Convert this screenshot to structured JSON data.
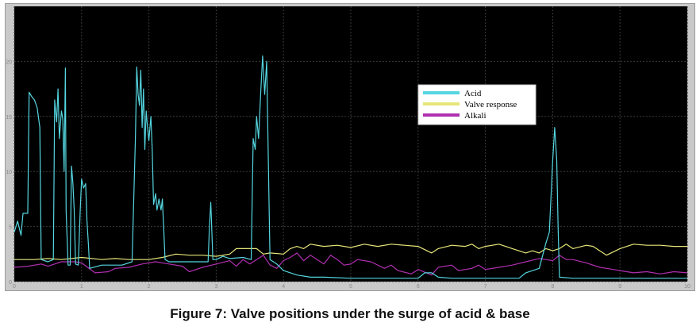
{
  "caption": "Figure 7: Valve positions under the surge of acid & base",
  "colors": {
    "background": "#000000",
    "grid": "#3a3a3a",
    "tick_text": "#8a8a8a",
    "legend_bg": "#ffffff",
    "Acid": "#55d6e0",
    "Valve response": "#e6e67a",
    "Alkali": "#b02fb0"
  },
  "chart_data": {
    "type": "line",
    "title": "",
    "xlabel": "",
    "ylabel": "",
    "xlim": [
      0,
      10
    ],
    "ylim": [
      0,
      25
    ],
    "grid": true,
    "legend_position": "upper-center-right",
    "x_ticks": [
      "0",
      "1",
      "2",
      "3",
      "4",
      "5",
      "6",
      "7",
      "8",
      "9",
      "10"
    ],
    "y_ticks": [
      "0",
      "5",
      "10",
      "15",
      "20"
    ],
    "series": [
      {
        "name": "Acid",
        "color": "#55d6e0",
        "points": [
          [
            0,
            4.5
          ],
          [
            0.05,
            5.5
          ],
          [
            0.1,
            4.2
          ],
          [
            0.13,
            6.2
          ],
          [
            0.2,
            6.2
          ],
          [
            0.22,
            17.2
          ],
          [
            0.26,
            16.8
          ],
          [
            0.3,
            16.5
          ],
          [
            0.34,
            15.8
          ],
          [
            0.38,
            14
          ],
          [
            0.4,
            2
          ],
          [
            0.5,
            1.8
          ],
          [
            0.58,
            2
          ],
          [
            0.6,
            16.5
          ],
          [
            0.63,
            14.5
          ],
          [
            0.65,
            17.5
          ],
          [
            0.67,
            13
          ],
          [
            0.7,
            15.5
          ],
          [
            0.72,
            14.8
          ],
          [
            0.74,
            10
          ],
          [
            0.76,
            19.4
          ],
          [
            0.77,
            6.5
          ],
          [
            0.8,
            1.5
          ],
          [
            0.83,
            1.5
          ],
          [
            0.85,
            10.5
          ],
          [
            0.87,
            9
          ],
          [
            0.89,
            6.5
          ],
          [
            0.91,
            1.6
          ],
          [
            0.95,
            1.5
          ],
          [
            0.98,
            6.5
          ],
          [
            1.0,
            9.3
          ],
          [
            1.03,
            8.5
          ],
          [
            1.06,
            8.9
          ],
          [
            1.08,
            5.5
          ],
          [
            1.1,
            3.5
          ],
          [
            1.12,
            1.2
          ],
          [
            1.3,
            1.5
          ],
          [
            1.5,
            1.5
          ],
          [
            1.6,
            1.5
          ],
          [
            1.75,
            1.8
          ],
          [
            1.8,
            13
          ],
          [
            1.82,
            19.5
          ],
          [
            1.84,
            17
          ],
          [
            1.86,
            16
          ],
          [
            1.88,
            19.2
          ],
          [
            1.9,
            14
          ],
          [
            1.92,
            17.5
          ],
          [
            1.94,
            12
          ],
          [
            1.96,
            15.5
          ],
          [
            1.98,
            14
          ],
          [
            2.0,
            12.8
          ],
          [
            2.03,
            15
          ],
          [
            2.05,
            12
          ],
          [
            2.07,
            7
          ],
          [
            2.1,
            8
          ],
          [
            2.12,
            6.5
          ],
          [
            2.15,
            7.5
          ],
          [
            2.18,
            6.5
          ],
          [
            2.2,
            7.5
          ],
          [
            2.24,
            2
          ],
          [
            2.3,
            1.8
          ],
          [
            2.5,
            1.8
          ],
          [
            2.7,
            1.8
          ],
          [
            2.88,
            1.8
          ],
          [
            2.9,
            5
          ],
          [
            2.92,
            7.2
          ],
          [
            2.95,
            2
          ],
          [
            3.0,
            2
          ],
          [
            3.1,
            2.3
          ],
          [
            3.2,
            2.1
          ],
          [
            3.4,
            2.2
          ],
          [
            3.52,
            2
          ],
          [
            3.55,
            13
          ],
          [
            3.58,
            12
          ],
          [
            3.6,
            15
          ],
          [
            3.63,
            13
          ],
          [
            3.66,
            17
          ],
          [
            3.69,
            20.5
          ],
          [
            3.72,
            17
          ],
          [
            3.75,
            20
          ],
          [
            3.8,
            2
          ],
          [
            3.9,
            1.6
          ],
          [
            4.0,
            1
          ],
          [
            4.2,
            0.6
          ],
          [
            4.4,
            0.4
          ],
          [
            4.6,
            0.4
          ],
          [
            5.0,
            0.3
          ],
          [
            5.5,
            0.3
          ],
          [
            6.0,
            0.3
          ],
          [
            6.1,
            0.8
          ],
          [
            6.2,
            0.8
          ],
          [
            6.3,
            0.4
          ],
          [
            6.5,
            0.3
          ],
          [
            7.0,
            0.3
          ],
          [
            7.5,
            0.3
          ],
          [
            7.6,
            0.8
          ],
          [
            7.8,
            1.2
          ],
          [
            7.9,
            3.5
          ],
          [
            7.95,
            4.5
          ],
          [
            8.0,
            11
          ],
          [
            8.03,
            14
          ],
          [
            8.06,
            11
          ],
          [
            8.08,
            5
          ],
          [
            8.1,
            0.4
          ],
          [
            8.3,
            0.3
          ],
          [
            8.6,
            0.3
          ],
          [
            9.0,
            0.3
          ],
          [
            9.5,
            0.3
          ],
          [
            10,
            0.3
          ]
        ]
      },
      {
        "name": "Valve response",
        "color": "#e6e67a",
        "points": [
          [
            0,
            2
          ],
          [
            0.3,
            2
          ],
          [
            0.5,
            2.1
          ],
          [
            0.7,
            2
          ],
          [
            1.0,
            2.2
          ],
          [
            1.3,
            2
          ],
          [
            1.5,
            2.1
          ],
          [
            1.7,
            2
          ],
          [
            2.0,
            2
          ],
          [
            2.2,
            2.2
          ],
          [
            2.4,
            2.5
          ],
          [
            2.6,
            2.4
          ],
          [
            2.8,
            2.4
          ],
          [
            3.0,
            2.3
          ],
          [
            3.2,
            2.5
          ],
          [
            3.3,
            3
          ],
          [
            3.6,
            3
          ],
          [
            3.7,
            2.5
          ],
          [
            3.8,
            2.6
          ],
          [
            4.0,
            2.5
          ],
          [
            4.1,
            3
          ],
          [
            4.2,
            3.2
          ],
          [
            4.3,
            3
          ],
          [
            4.4,
            3.4
          ],
          [
            4.6,
            3.2
          ],
          [
            4.8,
            3.3
          ],
          [
            5.0,
            3.1
          ],
          [
            5.2,
            3.4
          ],
          [
            5.4,
            3.2
          ],
          [
            5.6,
            3.4
          ],
          [
            5.8,
            3.3
          ],
          [
            6.0,
            3.2
          ],
          [
            6.2,
            2.6
          ],
          [
            6.3,
            3
          ],
          [
            6.5,
            3.3
          ],
          [
            6.7,
            3.2
          ],
          [
            6.8,
            3.4
          ],
          [
            6.9,
            3
          ],
          [
            7.0,
            3.2
          ],
          [
            7.2,
            3.4
          ],
          [
            7.4,
            3
          ],
          [
            7.6,
            2.6
          ],
          [
            7.7,
            2.8
          ],
          [
            7.8,
            2.6
          ],
          [
            7.9,
            3
          ],
          [
            8.0,
            2.8
          ],
          [
            8.1,
            3
          ],
          [
            8.2,
            3.4
          ],
          [
            8.3,
            3
          ],
          [
            8.5,
            3.3
          ],
          [
            8.6,
            3.2
          ],
          [
            8.8,
            2.4
          ],
          [
            9.0,
            3
          ],
          [
            9.2,
            3.4
          ],
          [
            9.4,
            3.3
          ],
          [
            9.6,
            3.3
          ],
          [
            9.8,
            3.2
          ],
          [
            10,
            3.2
          ]
        ]
      },
      {
        "name": "Alkali",
        "color": "#b02fb0",
        "points": [
          [
            0,
            1.3
          ],
          [
            0.2,
            1.4
          ],
          [
            0.4,
            1.6
          ],
          [
            0.5,
            1.4
          ],
          [
            0.6,
            1.6
          ],
          [
            0.7,
            1.8
          ],
          [
            0.9,
            1.8
          ],
          [
            1.0,
            1.7
          ],
          [
            1.2,
            0.8
          ],
          [
            1.4,
            0.9
          ],
          [
            1.5,
            1.2
          ],
          [
            1.7,
            1.3
          ],
          [
            1.9,
            1.6
          ],
          [
            2.1,
            1.8
          ],
          [
            2.3,
            1.6
          ],
          [
            2.5,
            1.4
          ],
          [
            2.6,
            0.9
          ],
          [
            2.8,
            1.3
          ],
          [
            3.0,
            1.6
          ],
          [
            3.2,
            1.9
          ],
          [
            3.3,
            1.4
          ],
          [
            3.4,
            2
          ],
          [
            3.5,
            1.6
          ],
          [
            3.6,
            2
          ],
          [
            3.7,
            2.4
          ],
          [
            3.8,
            1.5
          ],
          [
            3.9,
            1.2
          ],
          [
            4.0,
            1.9
          ],
          [
            4.1,
            2.2
          ],
          [
            4.2,
            2.6
          ],
          [
            4.3,
            1.9
          ],
          [
            4.4,
            2.4
          ],
          [
            4.5,
            2
          ],
          [
            4.6,
            1.6
          ],
          [
            4.7,
            2.4
          ],
          [
            4.8,
            2
          ],
          [
            4.9,
            1.5
          ],
          [
            5.0,
            1.6
          ],
          [
            5.1,
            2
          ],
          [
            5.3,
            1.8
          ],
          [
            5.5,
            1.2
          ],
          [
            5.6,
            1.5
          ],
          [
            5.7,
            1
          ],
          [
            5.9,
            0.7
          ],
          [
            6.0,
            1.1
          ],
          [
            6.2,
            0.6
          ],
          [
            6.3,
            1.3
          ],
          [
            6.5,
            1.5
          ],
          [
            6.6,
            1
          ],
          [
            6.8,
            1.2
          ],
          [
            6.9,
            1.5
          ],
          [
            7.0,
            1.1
          ],
          [
            7.2,
            1.3
          ],
          [
            7.4,
            1.5
          ],
          [
            7.6,
            1.8
          ],
          [
            7.8,
            2.1
          ],
          [
            7.9,
            2
          ],
          [
            8.0,
            1.9
          ],
          [
            8.1,
            2.4
          ],
          [
            8.2,
            2
          ],
          [
            8.3,
            2
          ],
          [
            8.5,
            1.7
          ],
          [
            8.7,
            1.3
          ],
          [
            8.9,
            1.1
          ],
          [
            9.0,
            1
          ],
          [
            9.2,
            0.8
          ],
          [
            9.4,
            0.9
          ],
          [
            9.6,
            0.7
          ],
          [
            9.8,
            0.9
          ],
          [
            10,
            0.8
          ]
        ]
      }
    ]
  }
}
